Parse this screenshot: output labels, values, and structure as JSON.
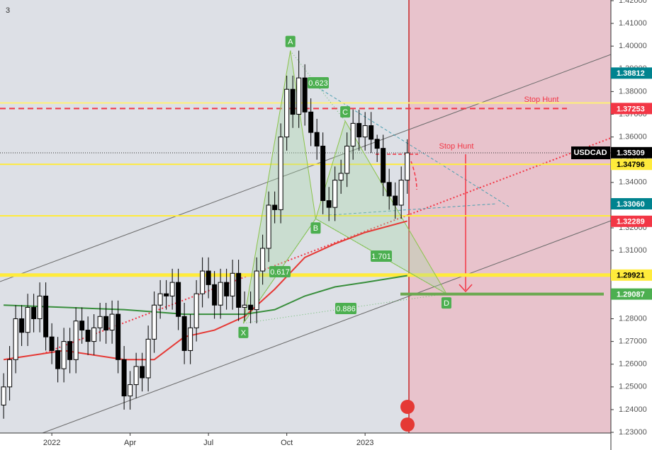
{
  "chart_data": {
    "type": "candlestick",
    "badge": "3",
    "symbol": "USDCAD",
    "x": [
      0,
      1,
      2,
      3,
      4,
      5,
      6,
      7,
      8,
      9,
      10,
      11,
      12,
      13,
      14,
      15,
      16,
      17,
      18,
      19,
      20,
      21,
      22,
      23,
      24,
      25,
      26,
      27,
      28,
      29,
      30,
      31,
      32,
      33,
      34,
      35,
      36,
      37,
      38,
      39,
      40,
      41,
      42,
      43,
      44,
      45,
      46,
      47,
      48,
      49,
      50,
      51,
      52,
      53,
      54,
      55,
      56,
      57,
      58,
      59,
      60,
      61,
      62,
      63,
      64,
      65,
      66,
      67
    ],
    "open": [
      1.242,
      1.25,
      1.262,
      1.28,
      1.274,
      1.285,
      1.28,
      1.29,
      1.272,
      1.266,
      1.258,
      1.27,
      1.262,
      1.279,
      1.275,
      1.27,
      1.276,
      1.281,
      1.275,
      1.282,
      1.262,
      1.246,
      1.251,
      1.259,
      1.254,
      1.271,
      1.286,
      1.291,
      1.29,
      1.296,
      1.281,
      1.266,
      1.276,
      1.291,
      1.301,
      1.295,
      1.286,
      1.296,
      1.29,
      1.3,
      1.285,
      1.286,
      1.284,
      1.301,
      1.311,
      1.33,
      1.328,
      1.36,
      1.381,
      1.37,
      1.386,
      1.371,
      1.362,
      1.356,
      1.332,
      1.329,
      1.341,
      1.344,
      1.356,
      1.366,
      1.36,
      1.365,
      1.359,
      1.355,
      1.34,
      1.334,
      1.33,
      1.341
    ],
    "high": [
      1.256,
      1.268,
      1.286,
      1.286,
      1.291,
      1.291,
      1.296,
      1.296,
      1.278,
      1.272,
      1.276,
      1.276,
      1.285,
      1.285,
      1.281,
      1.282,
      1.287,
      1.287,
      1.288,
      1.288,
      1.268,
      1.257,
      1.265,
      1.265,
      1.277,
      1.292,
      1.297,
      1.297,
      1.302,
      1.302,
      1.287,
      1.282,
      1.297,
      1.307,
      1.307,
      1.301,
      1.302,
      1.302,
      1.306,
      1.306,
      1.292,
      1.292,
      1.307,
      1.317,
      1.336,
      1.336,
      1.366,
      1.387,
      1.387,
      1.398,
      1.392,
      1.377,
      1.368,
      1.362,
      1.338,
      1.347,
      1.35,
      1.362,
      1.372,
      1.372,
      1.371,
      1.371,
      1.361,
      1.361,
      1.346,
      1.34,
      1.347,
      1.359
    ],
    "low": [
      1.236,
      1.244,
      1.256,
      1.268,
      1.268,
      1.274,
      1.274,
      1.266,
      1.26,
      1.252,
      1.252,
      1.256,
      1.256,
      1.269,
      1.264,
      1.264,
      1.27,
      1.269,
      1.269,
      1.256,
      1.24,
      1.24,
      1.245,
      1.248,
      1.248,
      1.265,
      1.28,
      1.284,
      1.284,
      1.275,
      1.26,
      1.26,
      1.27,
      1.285,
      1.289,
      1.28,
      1.28,
      1.284,
      1.284,
      1.279,
      1.279,
      1.278,
      1.278,
      1.295,
      1.305,
      1.322,
      1.322,
      1.354,
      1.364,
      1.364,
      1.365,
      1.356,
      1.35,
      1.326,
      1.323,
      1.323,
      1.335,
      1.338,
      1.35,
      1.354,
      1.354,
      1.353,
      1.349,
      1.334,
      1.328,
      1.324,
      1.324,
      1.335
    ],
    "close": [
      1.25,
      1.262,
      1.28,
      1.274,
      1.285,
      1.28,
      1.29,
      1.272,
      1.266,
      1.258,
      1.27,
      1.262,
      1.279,
      1.275,
      1.27,
      1.276,
      1.281,
      1.275,
      1.282,
      1.262,
      1.246,
      1.251,
      1.259,
      1.254,
      1.271,
      1.286,
      1.291,
      1.29,
      1.296,
      1.281,
      1.266,
      1.276,
      1.291,
      1.301,
      1.295,
      1.286,
      1.296,
      1.29,
      1.3,
      1.285,
      1.286,
      1.284,
      1.301,
      1.311,
      1.33,
      1.328,
      1.36,
      1.381,
      1.37,
      1.386,
      1.371,
      1.362,
      1.356,
      1.332,
      1.329,
      1.341,
      1.344,
      1.356,
      1.366,
      1.36,
      1.365,
      1.359,
      1.355,
      1.34,
      1.334,
      1.33,
      1.341,
      1.353
    ],
    "up_color": "#ffffff",
    "down_color": "#000000",
    "xlim": [
      -0.6,
      100.8
    ],
    "xticks": [
      {
        "value": 8,
        "label": "2022"
      },
      {
        "value": 21,
        "label": "Apr"
      },
      {
        "value": 34,
        "label": "Jul"
      },
      {
        "value": 47,
        "label": "Oct"
      },
      {
        "value": 60,
        "label": "2023"
      }
    ],
    "ylim": [
      1.2297,
      1.4203
    ],
    "yticks": [
      {
        "value": 1.23,
        "label": "1.23000"
      },
      {
        "value": 1.24,
        "label": "1.24000"
      },
      {
        "value": 1.25,
        "label": "1.25000"
      },
      {
        "value": 1.26,
        "label": "1.26000"
      },
      {
        "value": 1.27,
        "label": "1.27000"
      },
      {
        "value": 1.28,
        "label": "1.28000"
      },
      {
        "value": 1.29,
        "label": "1.29000"
      },
      {
        "value": 1.3,
        "label": "1.30000"
      },
      {
        "value": 1.31,
        "label": "1.31000"
      },
      {
        "value": 1.32,
        "label": "1.32000"
      },
      {
        "value": 1.33,
        "label": "1.33000"
      },
      {
        "value": 1.34,
        "label": "1.34000"
      },
      {
        "value": 1.35,
        "label": "1.35000"
      },
      {
        "value": 1.36,
        "label": "1.36000"
      },
      {
        "value": 1.37,
        "label": "1.37000"
      },
      {
        "value": 1.38,
        "label": "1.38000"
      },
      {
        "value": 1.39,
        "label": "1.39000"
      },
      {
        "value": 1.4,
        "label": "1.40000"
      },
      {
        "value": 1.41,
        "label": "1.41000"
      },
      {
        "value": 1.42,
        "label": "1.42000"
      }
    ],
    "moving_averages": [
      {
        "color": "#e53935",
        "x": [
          0,
          10,
          20,
          25,
          30,
          35,
          40,
          45,
          50,
          55,
          60,
          67
        ],
        "values": [
          1.262,
          1.266,
          1.262,
          1.262,
          1.272,
          1.275,
          1.281,
          1.293,
          1.307,
          1.313,
          1.318,
          1.323
        ]
      },
      {
        "color": "#388e3c",
        "x": [
          0,
          10,
          20,
          30,
          40,
          45,
          50,
          55,
          60,
          67
        ],
        "values": [
          1.286,
          1.285,
          1.284,
          1.282,
          1.282,
          1.284,
          1.29,
          1.294,
          1.296,
          1.299
        ]
      }
    ],
    "levels": [
      {
        "value": 1.375,
        "color": "#fff176",
        "style": "solid"
      },
      {
        "value": 1.37253,
        "color": "#f23645",
        "style": "dashed"
      },
      {
        "value": 1.34796,
        "color": "#ffeb3b",
        "style": "solid"
      },
      {
        "value": 1.3253,
        "color": "#ffeb3b",
        "style": "solid"
      },
      {
        "value": 1.29921,
        "color": "#ffeb3b",
        "style": "thick"
      }
    ],
    "price_labels": [
      {
        "value": 1.38812,
        "label": "1.38812",
        "color": "#00838f"
      },
      {
        "value": 1.37253,
        "label": "1.37253",
        "color": "#f23645"
      },
      {
        "value": 1.35309,
        "label": "1.35309",
        "color": "#000000"
      },
      {
        "value": 1.34796,
        "label": "1.34796",
        "color": "#ffeb3b"
      },
      {
        "value": 1.3306,
        "label": "1.33060",
        "color": "#00838f"
      },
      {
        "value": 1.32289,
        "label": "1.32289",
        "color": "#f23645"
      },
      {
        "value": 1.29921,
        "label": "1.29921",
        "color": "#ffeb3b"
      },
      {
        "value": 1.29087,
        "label": "1.29087",
        "color": "#4caf50"
      }
    ],
    "pattern": {
      "points": [
        {
          "label": "X",
          "x": 39.8,
          "y": 1.278
        },
        {
          "label": "A",
          "x": 47.6,
          "y": 1.398
        },
        {
          "label": "B",
          "x": 51.8,
          "y": 1.324
        },
        {
          "label": "C",
          "x": 56.7,
          "y": 1.367
        },
        {
          "label": "D",
          "x": 73.5,
          "y": 1.291
        }
      ],
      "ratios": [
        0.623,
        1.701,
        0.617,
        0.886
      ]
    },
    "annotations": [
      "Stop Hunt",
      "Stop Hunt"
    ]
  }
}
